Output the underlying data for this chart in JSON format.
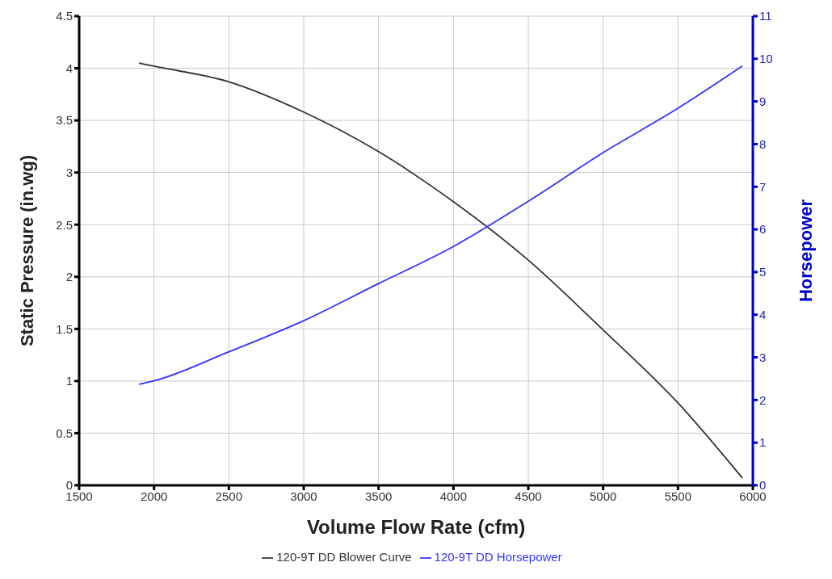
{
  "chart_data": {
    "type": "line",
    "xlabel": "Volume Flow Rate (cfm)",
    "ylabel": "Static Pressure (in.wg)",
    "y2label": "Horsepower",
    "xlim": [
      1500,
      6000
    ],
    "xticks": [
      1500,
      2000,
      2500,
      3000,
      3500,
      4000,
      4500,
      5000,
      5500,
      6000
    ],
    "ylim": [
      0,
      4.5
    ],
    "yticks": [
      0,
      0.5,
      1,
      1.5,
      2,
      2.5,
      3,
      3.5,
      4,
      4.5
    ],
    "y2lim": [
      0,
      11
    ],
    "y2ticks": [
      0,
      1,
      2,
      3,
      4,
      5,
      6,
      7,
      8,
      9,
      10,
      11
    ],
    "grid": true,
    "legend": "bottom",
    "marker": "none",
    "line_style": "solid",
    "series": [
      {
        "name": "120-9T DD Blower Curve",
        "color": "#333333",
        "x": [
          1900,
          2000,
          2500,
          3000,
          3500,
          4000,
          4500,
          5000,
          5500,
          5930
        ],
        "values": [
          4.05,
          4.02,
          3.87,
          3.58,
          3.2,
          2.72,
          2.16,
          1.49,
          0.79,
          0.07
        ]
      },
      {
        "name": "120-9T DD Horsepower",
        "color": "#3333ff",
        "axis": "y2",
        "x": [
          1900,
          2000,
          2500,
          3000,
          3500,
          4000,
          4500,
          5000,
          5500,
          5930
        ],
        "values": [
          2.37,
          2.45,
          3.13,
          3.86,
          4.73,
          5.6,
          6.66,
          7.8,
          8.84,
          9.83
        ]
      }
    ]
  }
}
